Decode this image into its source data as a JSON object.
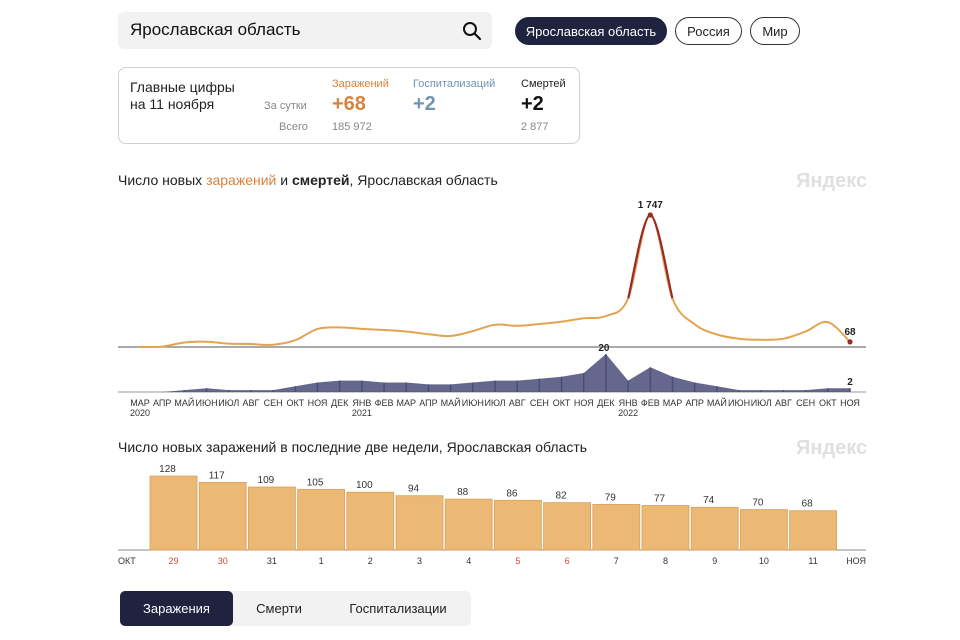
{
  "search": {
    "value": "Ярославская область"
  },
  "regions": [
    {
      "label": "Ярославская область",
      "active": true
    },
    {
      "label": "Россия",
      "active": false
    },
    {
      "label": "Мир",
      "active": false
    }
  ],
  "summary": {
    "heading_line1": "Главные цифры",
    "heading_line2": "на 11 ноября",
    "per_day_label": "За сутки",
    "total_label": "Всего",
    "cases": {
      "label": "Заражений",
      "day": "+68",
      "total": "185 972"
    },
    "hospital": {
      "label": "Госпитализаций",
      "day": "+2",
      "total": ""
    },
    "deaths": {
      "label": "Смертей",
      "day": "+2",
      "total": "2 877"
    }
  },
  "chart1": {
    "title_pre": "Число новых ",
    "title_cases": "заражений",
    "title_mid": " и ",
    "title_deaths": "смертей",
    "title_post": ", Ярославская область",
    "watermark": "Яндекс"
  },
  "chart2": {
    "title": "Число новых заражений в последние две недели, Ярославская область",
    "watermark": "Яндекс"
  },
  "tabs": [
    {
      "label": "Заражения",
      "active": true
    },
    {
      "label": "Смерти",
      "active": false
    },
    {
      "label": "Госпитализации",
      "active": false
    }
  ],
  "colors": {
    "accent_dark": "#1f2340",
    "cases": "#e3a452",
    "cases_text": "#d9823b",
    "peak": "#9b2a25",
    "deaths": "#4a4c78",
    "hospital_text": "#6f94b6",
    "bar": "#ecb876",
    "bar_stroke": "#d9a158"
  },
  "chart_data": [
    {
      "type": "line",
      "title": "Число новых заражений и смертей, Ярославская область",
      "series": [
        {
          "name": "Заражения",
          "x": [
            "2020-03",
            "2020-04",
            "2020-05",
            "2020-06",
            "2020-07",
            "2020-08",
            "2020-09",
            "2020-10",
            "2020-11",
            "2020-12",
            "2021-01",
            "2021-02",
            "2021-03",
            "2021-04",
            "2021-05",
            "2021-06",
            "2021-07",
            "2021-08",
            "2021-09",
            "2021-10",
            "2021-11",
            "2021-12",
            "2022-01",
            "2022-02",
            "2022-03",
            "2022-04",
            "2022-05",
            "2022-06",
            "2022-07",
            "2022-08",
            "2022-09",
            "2022-10",
            "2022-11"
          ],
          "values": [
            0,
            5,
            60,
            70,
            45,
            40,
            30,
            90,
            240,
            260,
            240,
            225,
            205,
            170,
            145,
            210,
            295,
            280,
            305,
            335,
            380,
            410,
            640,
            1747,
            640,
            300,
            165,
            110,
            95,
            110,
            205,
            330,
            68
          ]
        },
        {
          "name": "Смерти",
          "x": [
            "2020-03",
            "2020-04",
            "2020-05",
            "2020-06",
            "2020-07",
            "2020-08",
            "2020-09",
            "2020-10",
            "2020-11",
            "2020-12",
            "2021-01",
            "2021-02",
            "2021-03",
            "2021-04",
            "2021-05",
            "2021-06",
            "2021-07",
            "2021-08",
            "2021-09",
            "2021-10",
            "2021-11",
            "2021-12",
            "2022-01",
            "2022-02",
            "2022-03",
            "2022-04",
            "2022-05",
            "2022-06",
            "2022-07",
            "2022-08",
            "2022-09",
            "2022-10",
            "2022-11"
          ],
          "values": [
            0,
            0,
            1,
            2,
            1,
            1,
            1,
            3,
            5,
            6,
            6,
            5,
            5,
            4,
            4,
            5,
            6,
            6,
            7,
            8,
            10,
            20,
            6,
            13,
            8,
            5,
            3,
            1,
            1,
            1,
            1,
            2,
            2
          ]
        }
      ],
      "labels": {
        "peak": "1 747",
        "last_cases": "68",
        "peak_deaths": "20",
        "last_deaths": "2"
      },
      "x_ticks": [
        "МАР",
        "АПР",
        "МАЙ",
        "ИЮН",
        "ИЮЛ",
        "АВГ",
        "СЕН",
        "ОКТ",
        "НОЯ",
        "ДЕК",
        "ЯНВ",
        "ФЕВ",
        "МАР",
        "АПР",
        "МАЙ",
        "ИЮН",
        "ИЮЛ",
        "АВГ",
        "СЕН",
        "ОКТ",
        "НОЯ",
        "ДЕК",
        "ЯНВ",
        "ФЕВ",
        "МАР",
        "АПР",
        "МАЙ",
        "ИЮН",
        "ИЮЛ",
        "АВГ",
        "СЕН",
        "ОКТ",
        "НОЯ"
      ],
      "year_ticks": [
        {
          "label": "2020",
          "index": 0
        },
        {
          "label": "2021",
          "index": 10
        },
        {
          "label": "2022",
          "index": 22
        }
      ]
    },
    {
      "type": "bar",
      "title": "Число новых заражений в последние две недели, Ярославская область",
      "categories": [
        "29",
        "30",
        "31",
        "1",
        "2",
        "3",
        "4",
        "5",
        "6",
        "7",
        "8",
        "9",
        "10",
        "11"
      ],
      "values": [
        128,
        117,
        109,
        105,
        100,
        94,
        88,
        86,
        82,
        79,
        77,
        74,
        70,
        68
      ],
      "weekend": [
        true,
        true,
        false,
        false,
        false,
        false,
        false,
        true,
        true,
        false,
        false,
        false,
        false,
        false
      ],
      "month_left": "ОКТ",
      "month_right": "НОЯ",
      "ylim": [
        0,
        135
      ]
    }
  ]
}
